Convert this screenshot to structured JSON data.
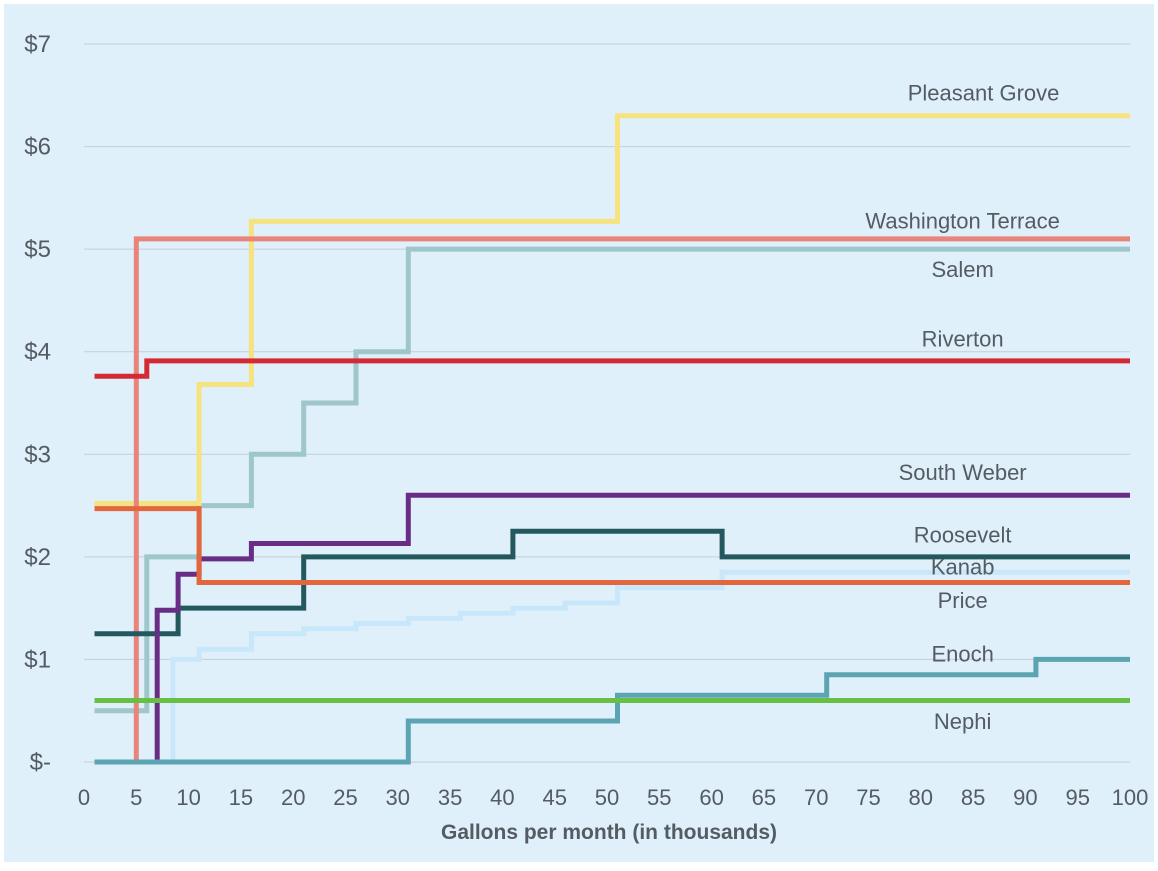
{
  "chart_data": {
    "type": "line",
    "step": true,
    "title": "",
    "xlabel": "Gallons per month (in thousands)",
    "ylabel": "",
    "xlim": [
      0,
      100
    ],
    "ylim": [
      0,
      7
    ],
    "x_ticks": [
      "0",
      "5",
      "10",
      "15",
      "20",
      "25",
      "30",
      "35",
      "40",
      "45",
      "50",
      "55",
      "60",
      "65",
      "70",
      "75",
      "80",
      "85",
      "90",
      "95",
      "100"
    ],
    "y_ticks": [
      "$-",
      "$1",
      "$2",
      "$3",
      "$4",
      "$5",
      "$6",
      "$7"
    ],
    "grid": "horizontal",
    "background": "#dff0fb",
    "series": [
      {
        "name": "Kanab",
        "color": "#c9e7fa",
        "points": [
          [
            8.5,
            0
          ],
          [
            8.5,
            1
          ],
          [
            11,
            1
          ],
          [
            11,
            1.1
          ],
          [
            16,
            1.1
          ],
          [
            16,
            1.25
          ],
          [
            21,
            1.25
          ],
          [
            21,
            1.3
          ],
          [
            26,
            1.3
          ],
          [
            26,
            1.35
          ],
          [
            31,
            1.35
          ],
          [
            31,
            1.4
          ],
          [
            36,
            1.4
          ],
          [
            36,
            1.45
          ],
          [
            41,
            1.45
          ],
          [
            41,
            1.5
          ],
          [
            46,
            1.5
          ],
          [
            46,
            1.55
          ],
          [
            51,
            1.55
          ],
          [
            51,
            1.7
          ],
          [
            56,
            1.7
          ],
          [
            61,
            1.7
          ],
          [
            61,
            1.85
          ],
          [
            100,
            1.85
          ]
        ]
      },
      {
        "name": "Salem",
        "color": "#9ec6cb",
        "points": [
          [
            1,
            0.5
          ],
          [
            6,
            0.5
          ],
          [
            6,
            2
          ],
          [
            11,
            2
          ],
          [
            11,
            2.5
          ],
          [
            16,
            2.5
          ],
          [
            16,
            3
          ],
          [
            21,
            3
          ],
          [
            21,
            3.5
          ],
          [
            26,
            3.5
          ],
          [
            26,
            4
          ],
          [
            31,
            4
          ],
          [
            31,
            5
          ],
          [
            100,
            5
          ]
        ]
      },
      {
        "name": "Pleasant Grove",
        "color": "#f6e27f",
        "points": [
          [
            1,
            2.52
          ],
          [
            11,
            2.52
          ],
          [
            11,
            3.68
          ],
          [
            16,
            3.68
          ],
          [
            16,
            5.27
          ],
          [
            51,
            5.27
          ],
          [
            51,
            6.3
          ],
          [
            100,
            6.3
          ]
        ]
      },
      {
        "name": "Washington Terrace",
        "color": "#e8847a",
        "points": [
          [
            1,
            0
          ],
          [
            5,
            0
          ],
          [
            5,
            5.1
          ],
          [
            100,
            5.1
          ]
        ]
      },
      {
        "name": "Riverton",
        "color": "#d42a34",
        "points": [
          [
            1,
            3.76
          ],
          [
            6,
            3.76
          ],
          [
            6,
            3.91
          ],
          [
            100,
            3.91
          ]
        ]
      },
      {
        "name": "Roosevelt",
        "color": "#23585e",
        "points": [
          [
            1,
            1.25
          ],
          [
            9,
            1.25
          ],
          [
            9,
            1.5
          ],
          [
            21,
            1.5
          ],
          [
            21,
            2
          ],
          [
            41,
            2
          ],
          [
            41,
            2.25
          ],
          [
            61,
            2.25
          ],
          [
            61,
            2
          ],
          [
            100,
            2
          ]
        ]
      },
      {
        "name": "South Weber",
        "color": "#6a2d86",
        "points": [
          [
            1,
            0
          ],
          [
            7,
            0
          ],
          [
            7,
            1.48
          ],
          [
            9,
            1.48
          ],
          [
            9,
            1.83
          ],
          [
            11,
            1.83
          ],
          [
            11,
            1.98
          ],
          [
            16,
            1.98
          ],
          [
            16,
            2.13
          ],
          [
            31,
            2.13
          ],
          [
            31,
            2.6
          ],
          [
            100,
            2.6
          ]
        ]
      },
      {
        "name": "Price",
        "color": "#e2673d",
        "points": [
          [
            1,
            2.47
          ],
          [
            11,
            2.47
          ],
          [
            11,
            1.75
          ],
          [
            100,
            1.75
          ]
        ]
      },
      {
        "name": "Enoch",
        "color": "#5aa5b1",
        "points": [
          [
            1,
            0
          ],
          [
            31,
            0
          ],
          [
            31,
            0.4
          ],
          [
            51,
            0.4
          ],
          [
            51,
            0.65
          ],
          [
            71,
            0.65
          ],
          [
            71,
            0.85
          ],
          [
            91,
            0.85
          ],
          [
            91,
            1
          ],
          [
            100,
            1
          ]
        ]
      },
      {
        "name": "Nephi",
        "color": "#67bf46",
        "points": [
          [
            1,
            0.6
          ],
          [
            100,
            0.6
          ]
        ]
      }
    ],
    "series_labels": [
      {
        "name": "Pleasant Grove",
        "x": 86,
        "y": 6.45
      },
      {
        "name": "Washington Terrace",
        "x": 84,
        "y": 5.2
      },
      {
        "name": "Salem",
        "x": 84,
        "y": 4.73
      },
      {
        "name": "Riverton",
        "x": 84,
        "y": 4.05
      },
      {
        "name": "South Weber",
        "x": 84,
        "y": 2.75
      },
      {
        "name": "Roosevelt",
        "x": 84,
        "y": 2.14
      },
      {
        "name": "Kanab",
        "x": 84,
        "y": 1.83
      },
      {
        "name": "Price",
        "x": 84,
        "y": 1.5
      },
      {
        "name": "Enoch",
        "x": 84,
        "y": 0.98
      },
      {
        "name": "Nephi",
        "x": 84,
        "y": 0.32
      }
    ]
  }
}
